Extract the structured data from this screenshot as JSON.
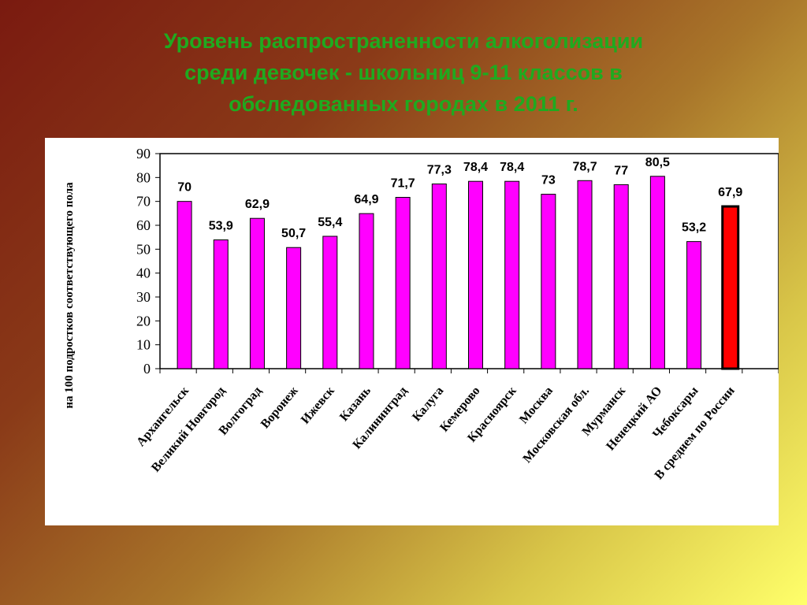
{
  "title_lines": [
    "Уровень распространенности алкоголизации",
    "среди девочек - школьниц 9-11 классов  в",
    "обследованных городах в 2011 г."
  ],
  "chart_data": {
    "type": "bar",
    "ylabel": "на 100 подростков соответствующего пола",
    "ylim": [
      0,
      90
    ],
    "yticks": [
      0,
      10,
      20,
      30,
      40,
      50,
      60,
      70,
      80,
      90
    ],
    "categories": [
      "Архангельск",
      "Великий Новгород",
      "Волгоград",
      "Воронеж",
      "Ижевск",
      "Казань",
      "Калининград",
      "Калуга",
      "Кемерово",
      "Красноярск",
      "Москва",
      "Московская обл.",
      "Мурманск",
      "Ненецкий АО",
      "Чебоксары",
      "В среднем по России"
    ],
    "values": [
      70,
      53.9,
      62.9,
      50.7,
      55.4,
      64.9,
      71.7,
      77.3,
      78.4,
      78.4,
      73,
      78.7,
      77,
      80.5,
      53.2,
      67.9
    ],
    "value_labels": [
      "70",
      "53,9",
      "62,9",
      "50,7",
      "55,4",
      "64,9",
      "71,7",
      "77,3",
      "78,4",
      "78,4",
      "73",
      "78,7",
      "77",
      "80,5",
      "53,2",
      "67,9"
    ],
    "highlight_index": 15,
    "colors": {
      "bar": "#ff00ff",
      "highlight": "#ff0000",
      "outline": "#000000"
    },
    "grid": false,
    "legend": "none"
  }
}
